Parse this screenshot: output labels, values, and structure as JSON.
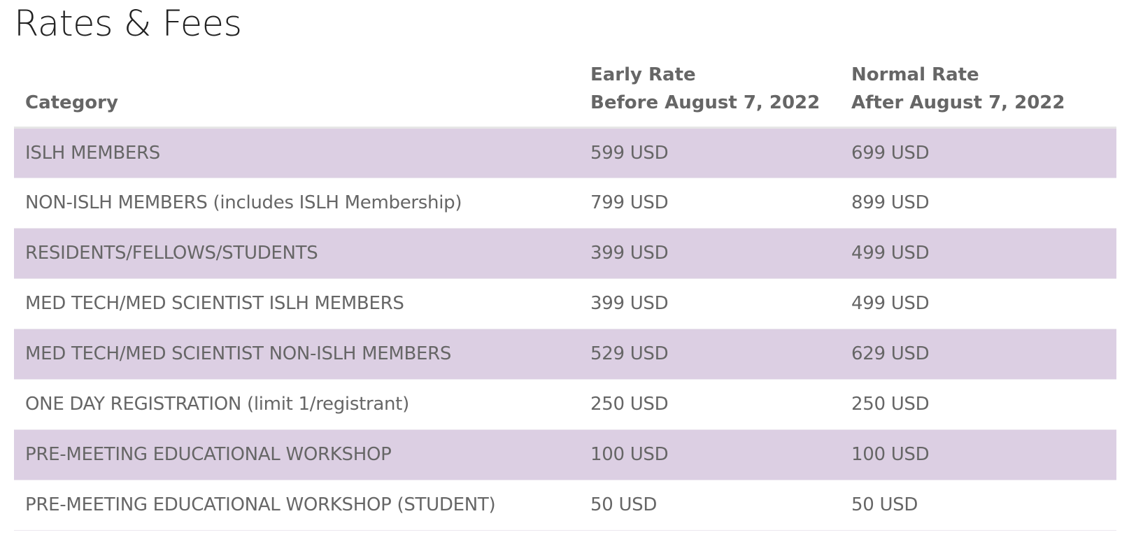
{
  "page": {
    "title": "Rates & Fees"
  },
  "colors": {
    "shaded_row": "#dccfe3",
    "text": "#666666",
    "title": "#222222"
  },
  "table": {
    "headers": {
      "category": "Category",
      "early_line1": "Early Rate",
      "early_line2": "Before August 7, 2022",
      "normal_line1": "Normal Rate",
      "normal_line2": "After August 7, 2022"
    },
    "rows": [
      {
        "category": "ISLH MEMBERS",
        "early": "599 USD",
        "normal": "699 USD",
        "shaded": true
      },
      {
        "category": "NON-ISLH MEMBERS (includes ISLH Membership)",
        "early": "799 USD",
        "normal": "899 USD",
        "shaded": false
      },
      {
        "category": "RESIDENTS/FELLOWS/STUDENTS",
        "early": "399 USD",
        "normal": "499 USD",
        "shaded": true
      },
      {
        "category": "MED TECH/MED SCIENTIST ISLH MEMBERS",
        "early": "399 USD",
        "normal": "499 USD",
        "shaded": false
      },
      {
        "category": "MED TECH/MED SCIENTIST NON-ISLH MEMBERS",
        "early": "529 USD",
        "normal": "629 USD",
        "shaded": true
      },
      {
        "category": "ONE DAY REGISTRATION (limit 1/registrant)",
        "early": "250 USD",
        "normal": "250 USD",
        "shaded": false
      },
      {
        "category": "PRE-MEETING EDUCATIONAL WORKSHOP",
        "early": "100 USD",
        "normal": "100 USD",
        "shaded": true
      },
      {
        "category": "PRE-MEETING EDUCATIONAL WORKSHOP (STUDENT)",
        "early": "50 USD",
        "normal": "50 USD",
        "shaded": false
      }
    ]
  }
}
